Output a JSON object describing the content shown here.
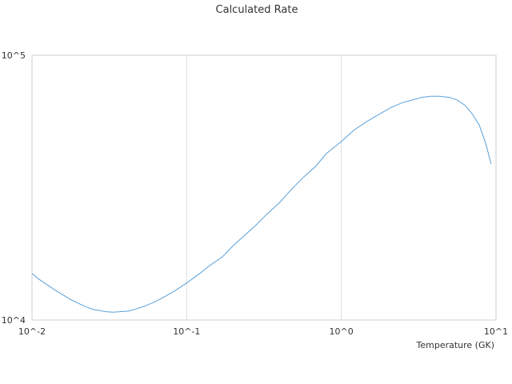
{
  "chart_data": {
    "type": "line",
    "title": "Calculated Rate",
    "xlabel": "Temperature (GK)",
    "ylabel": "",
    "x_scale": "log",
    "y_scale": "log",
    "xlim": [
      0.01,
      10
    ],
    "ylim": [
      10000,
      100000
    ],
    "x_tick_values": [
      0.01,
      0.1,
      1,
      10
    ],
    "x_tick_labels": [
      "10^-2",
      "10^-1",
      "10^0",
      "10^1"
    ],
    "y_tick_values": [
      10000,
      100000
    ],
    "y_tick_labels": [
      "10^4",
      "10^5"
    ],
    "grid": true,
    "line_color": "#5aa0d8",
    "series": [
      {
        "x": [
          0.01,
          0.011,
          0.0125,
          0.014,
          0.016,
          0.018,
          0.02,
          0.0225,
          0.025,
          0.0275,
          0.03,
          0.0335,
          0.037,
          0.042,
          0.047,
          0.054,
          0.062,
          0.072,
          0.084,
          0.1,
          0.12,
          0.14,
          0.17,
          0.2,
          0.24,
          0.28,
          0.33,
          0.4,
          0.47,
          0.56,
          0.68,
          0.8,
          1.0,
          1.2,
          1.45,
          1.75,
          2.1,
          2.5,
          2.9,
          3.3,
          3.8,
          4.3,
          5.0,
          5.6,
          6.3,
          7.0,
          7.8,
          8.6,
          9.3
        ],
        "y": [
          15000,
          14300,
          13600,
          13000,
          12400,
          11900,
          11550,
          11200,
          10950,
          10850,
          10750,
          10700,
          10750,
          10800,
          11000,
          11300,
          11700,
          12250,
          12900,
          13800,
          14900,
          16000,
          17300,
          19100,
          21000,
          22800,
          25100,
          27800,
          30900,
          34300,
          38000,
          42500,
          47200,
          52000,
          56000,
          59800,
          63500,
          66300,
          67800,
          69300,
          70000,
          70000,
          69300,
          67800,
          64700,
          60200,
          54500,
          46300,
          38800
        ]
      }
    ]
  }
}
